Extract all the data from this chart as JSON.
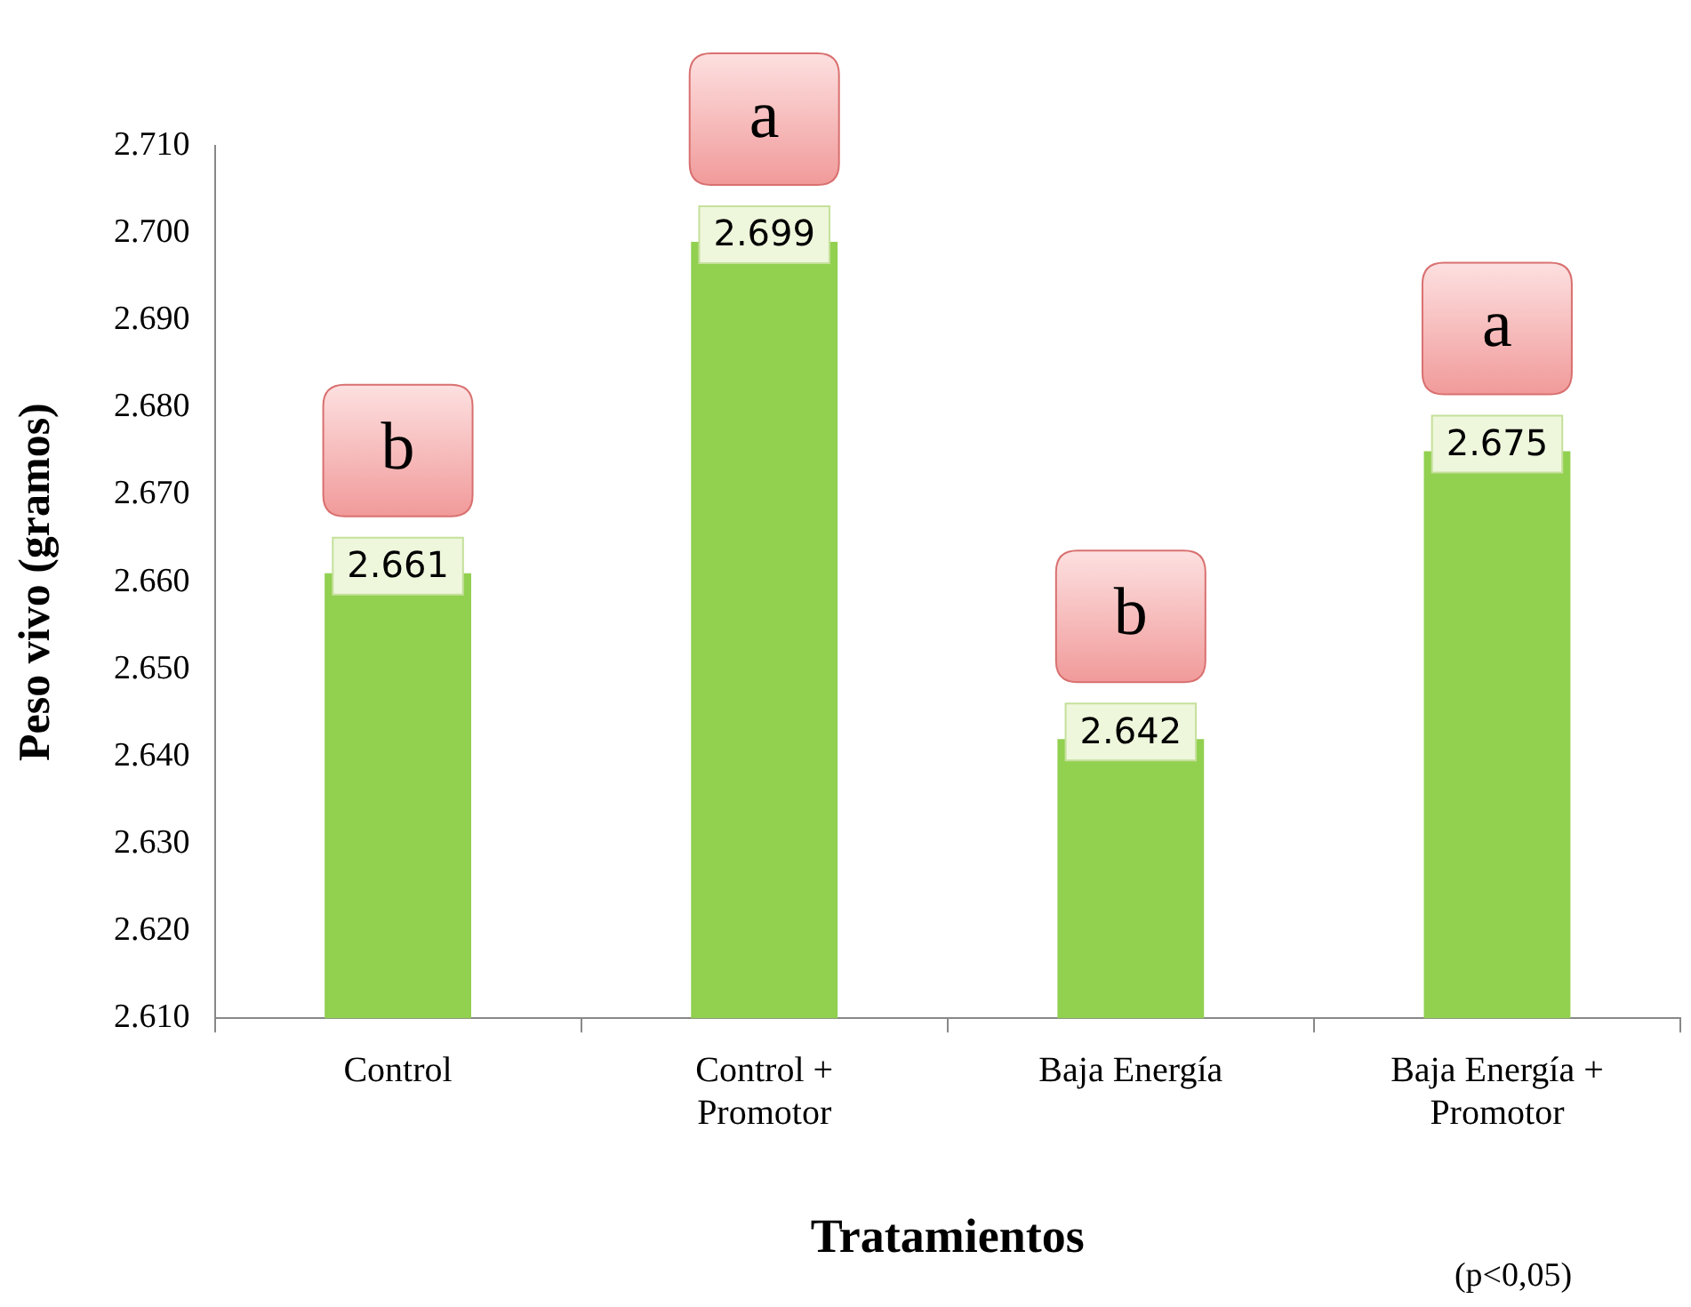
{
  "chart_data": {
    "type": "bar",
    "xlabel": "Tratamientos",
    "ylabel": "Peso vivo (gramos)",
    "categories": [
      "Control",
      "Control + Promotor",
      "Baja Energía",
      "Baja Energía + Promotor"
    ],
    "values": [
      2.661,
      2.699,
      2.642,
      2.675
    ],
    "color": "#92d050",
    "value_labels": [
      "2.661",
      "2.699",
      "2.642",
      "2.675"
    ],
    "ylim": [
      2.61,
      2.71
    ],
    "yticks": [
      {
        "value": 2.61,
        "label": "2.610"
      },
      {
        "value": 2.62,
        "label": "2.620"
      },
      {
        "value": 2.63,
        "label": "2.630"
      },
      {
        "value": 2.64,
        "label": "2.640"
      },
      {
        "value": 2.65,
        "label": "2.650"
      },
      {
        "value": 2.66,
        "label": "2.660"
      },
      {
        "value": 2.67,
        "label": "2.670"
      },
      {
        "value": 2.68,
        "label": "2.680"
      },
      {
        "value": 2.69,
        "label": "2.690"
      },
      {
        "value": 2.7,
        "label": "2.700"
      },
      {
        "value": 2.71,
        "label": "2.710"
      }
    ],
    "grid": false,
    "legend": false,
    "annotations": [
      {
        "text": "b",
        "x": "Control",
        "y": 2.661
      },
      {
        "text": "a",
        "x": "Control + Promotor",
        "y": 2.699
      },
      {
        "text": "b",
        "x": "Baja Energía",
        "y": 2.642
      },
      {
        "text": "a",
        "x": "Baja Energía + Promotor",
        "y": 2.675
      },
      "(p<0,05)"
    ]
  }
}
